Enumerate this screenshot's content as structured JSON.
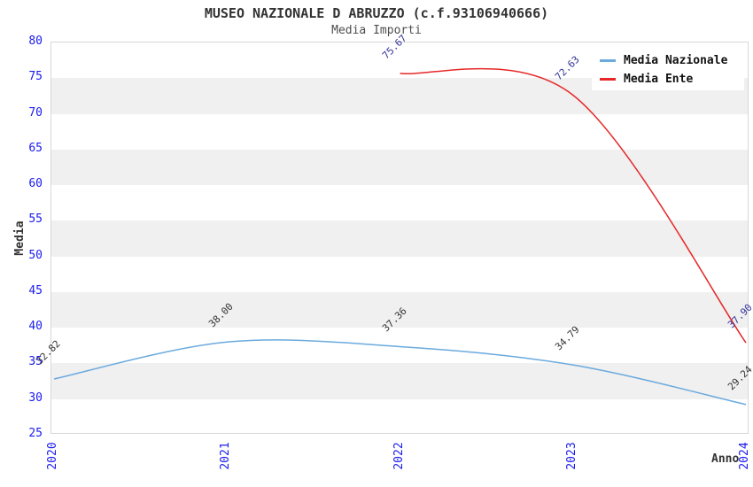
{
  "header": {
    "title": "MUSEO NAZIONALE D ABRUZZO (c.f.93106940666)",
    "subtitle": "Media Importi"
  },
  "chart_data": {
    "type": "line",
    "x": [
      "2020",
      "2021",
      "2022",
      "2023",
      "2024"
    ],
    "series": [
      {
        "name": "Media Nazionale",
        "color": "#6aaade",
        "label_color": "#333333",
        "values": [
          32.82,
          38.0,
          37.36,
          34.79,
          29.24
        ],
        "labels": [
          "32.82",
          "38.00",
          "37.36",
          "34.79",
          "29.24"
        ]
      },
      {
        "name": "Media Ente",
        "color": "#e62828",
        "label_color": "#333399",
        "values": [
          null,
          null,
          75.67,
          72.63,
          37.9
        ],
        "labels": [
          "",
          "",
          "75.67",
          "72.63",
          "37.90"
        ]
      }
    ],
    "xlabel": "Anno",
    "ylabel": "Media",
    "ylim": [
      25,
      80
    ],
    "ytick_step": 5,
    "grid": "horizontal-alternating-bands",
    "legend_position": "top-right",
    "colors": {
      "tick_label": "#1a1aee",
      "band_gray": "#f0f0f0",
      "spine": "#d8d8d8",
      "title": "#333333"
    }
  }
}
